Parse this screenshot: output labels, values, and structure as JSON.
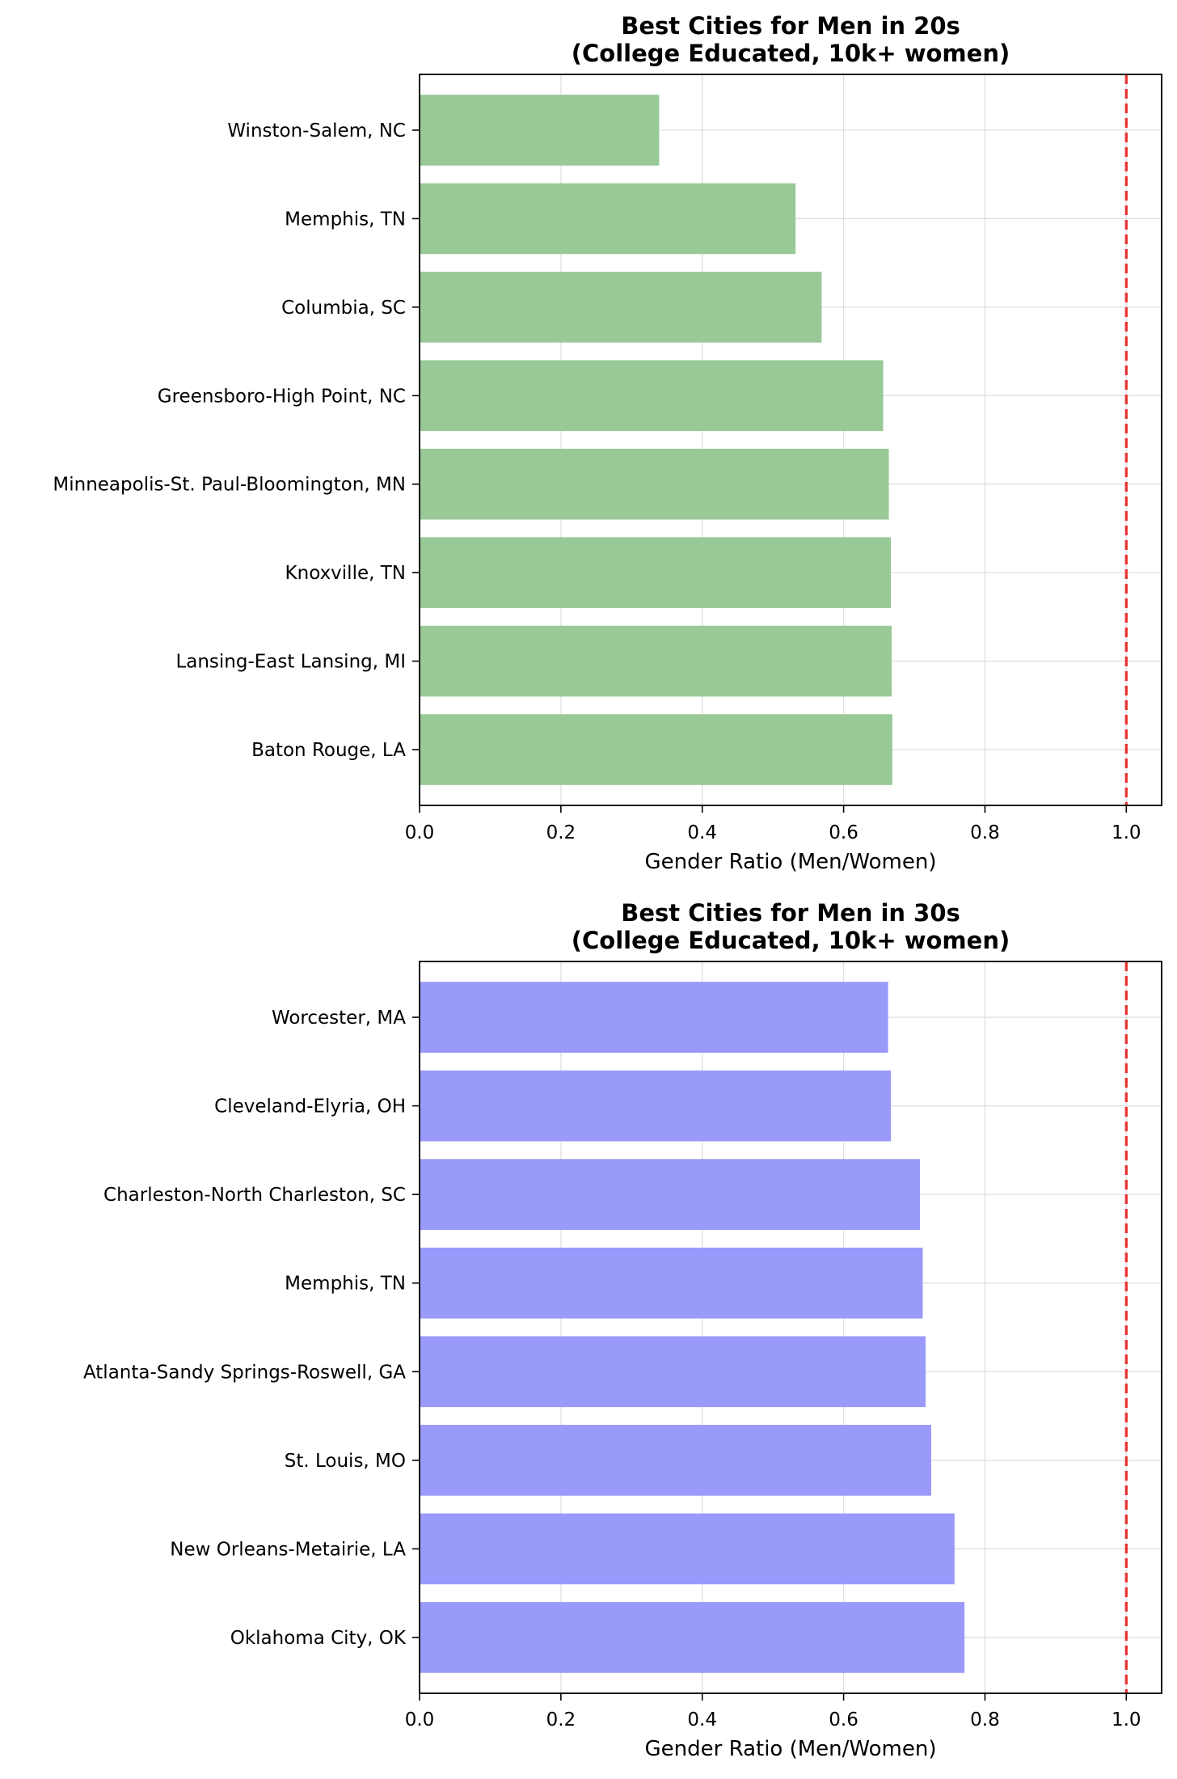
{
  "chart_data": [
    {
      "type": "bar",
      "orientation": "horizontal",
      "title_lines": [
        "Best Cities for Men in 20s",
        "(College Educated, 10k+ women)"
      ],
      "categories": [
        "Winston-Salem, NC",
        "Memphis, TN",
        "Columbia, SC",
        "Greensboro-High Point, NC",
        "Minneapolis-St. Paul-Bloomington, MN",
        "Knoxville, TN",
        "Lansing-East Lansing, MI",
        "Baton Rouge, LA"
      ],
      "values": [
        0.339,
        0.532,
        0.569,
        0.656,
        0.664,
        0.667,
        0.668,
        0.669
      ],
      "color": "#98c996",
      "xlabel": "Gender Ratio (Men/Women)",
      "ylabel": "",
      "xlim": [
        0.0,
        1.05
      ],
      "xticks": [
        "0.0",
        "0.2",
        "0.4",
        "0.6",
        "0.8",
        "1.0"
      ],
      "reference_line": {
        "value": 1.0,
        "color": "#e8302e",
        "style": "dashed"
      },
      "grid": true
    },
    {
      "type": "bar",
      "orientation": "horizontal",
      "title_lines": [
        "Best Cities for Men in 30s",
        "(College Educated, 10k+ women)"
      ],
      "categories": [
        "Worcester, MA",
        "Cleveland-Elyria, OH",
        "Charleston-North Charleston, SC",
        "Memphis, TN",
        "Atlanta-Sandy Springs-Roswell, GA",
        "St. Louis, MO",
        "New Orleans-Metairie, LA",
        "Oklahoma City, OK"
      ],
      "values": [
        0.663,
        0.667,
        0.708,
        0.712,
        0.716,
        0.724,
        0.757,
        0.771
      ],
      "color": "#9a9afa",
      "xlabel": "Gender Ratio (Men/Women)",
      "ylabel": "",
      "xlim": [
        0.0,
        1.05
      ],
      "xticks": [
        "0.0",
        "0.2",
        "0.4",
        "0.6",
        "0.8",
        "1.0"
      ],
      "reference_line": {
        "value": 1.0,
        "color": "#e8302e",
        "style": "dashed"
      },
      "grid": true
    }
  ]
}
